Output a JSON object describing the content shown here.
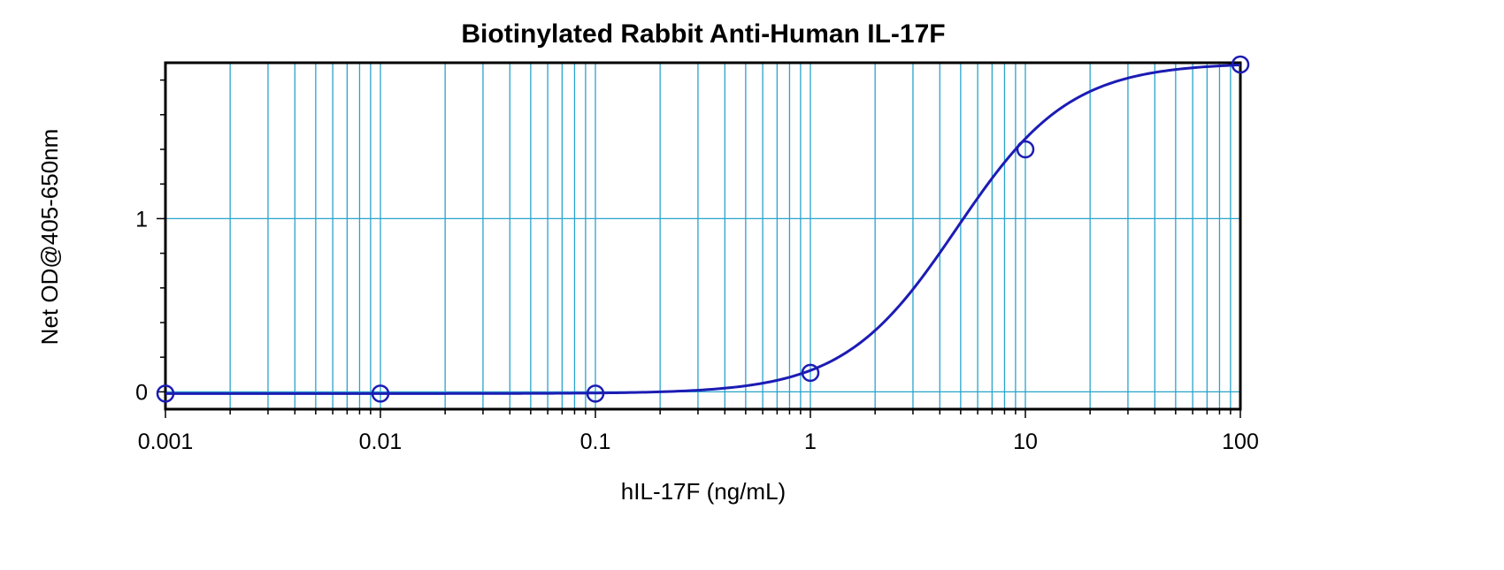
{
  "chart_data": {
    "type": "scatter",
    "title": "Biotinylated Rabbit Anti-Human IL-17F",
    "xlabel": "hIL-17F (ng/mL)",
    "ylabel": "Net OD@405-650nm",
    "x_scale": "log",
    "xlim": [
      0.001,
      100
    ],
    "ylim": [
      -0.1,
      1.9
    ],
    "x_ticks": [
      {
        "value": 0.001,
        "label": "0.001"
      },
      {
        "value": 0.01,
        "label": "0.01"
      },
      {
        "value": 0.1,
        "label": "0.1"
      },
      {
        "value": 1,
        "label": "1"
      },
      {
        "value": 10,
        "label": "10"
      },
      {
        "value": 100,
        "label": "100"
      }
    ],
    "y_ticks": [
      {
        "value": 0,
        "label": "0"
      },
      {
        "value": 1,
        "label": "1"
      }
    ],
    "grid": true,
    "colors": {
      "grid": "#29a3cc",
      "series": "#1c1cb4",
      "frame": "#000000"
    },
    "series": [
      {
        "x": [
          0.001,
          0.01,
          0.1,
          1,
          10,
          100
        ],
        "y": [
          -0.01,
          -0.01,
          -0.01,
          0.11,
          1.4,
          1.89
        ]
      }
    ],
    "fit": {
      "model": "4PL",
      "bottom": -0.01,
      "top": 1.9,
      "ec50": 4.8,
      "hill": 1.65
    }
  }
}
